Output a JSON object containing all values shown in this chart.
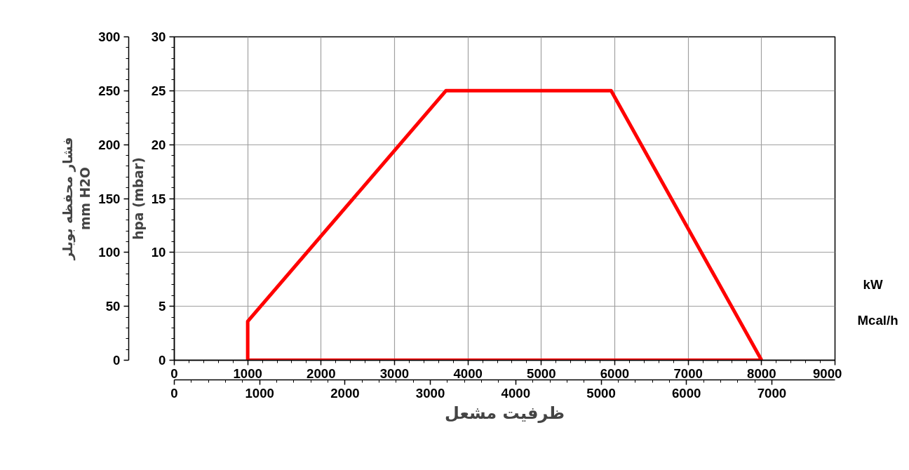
{
  "chart_data": {
    "type": "line",
    "series": [
      {
        "color": "#ff0000",
        "x": [
          1000,
          1000,
          3700,
          5950,
          8000
        ],
        "values": [
          0,
          3.6,
          25,
          25,
          0
        ]
      },
      {
        "color": "#ff0000",
        "x": [
          1000,
          8000
        ],
        "values": [
          0,
          0
        ]
      }
    ],
    "xlabel": "kW",
    "x2label": "Mcal/h",
    "ylabel": "hpa (mbar)",
    "y2label": "فشار محفظه بویلر\nmm H2O",
    "annotations": [
      "ظرفیت مشعل"
    ],
    "xlim": [
      0,
      9000
    ],
    "xticks": [
      0,
      1000,
      2000,
      3000,
      4000,
      5000,
      6000,
      7000,
      8000,
      9000
    ],
    "x2lim": [
      0,
      7740
    ],
    "x2ticks": [
      0,
      1000,
      2000,
      3000,
      4000,
      5000,
      6000,
      7000
    ],
    "ylim": [
      0,
      30
    ],
    "yticks": [
      0,
      5,
      10,
      15,
      20,
      25,
      30
    ],
    "y2lim": [
      0,
      300
    ],
    "y2ticks": [
      0,
      50,
      100,
      150,
      200,
      250,
      300
    ],
    "grid": true,
    "line_style": "solid"
  }
}
